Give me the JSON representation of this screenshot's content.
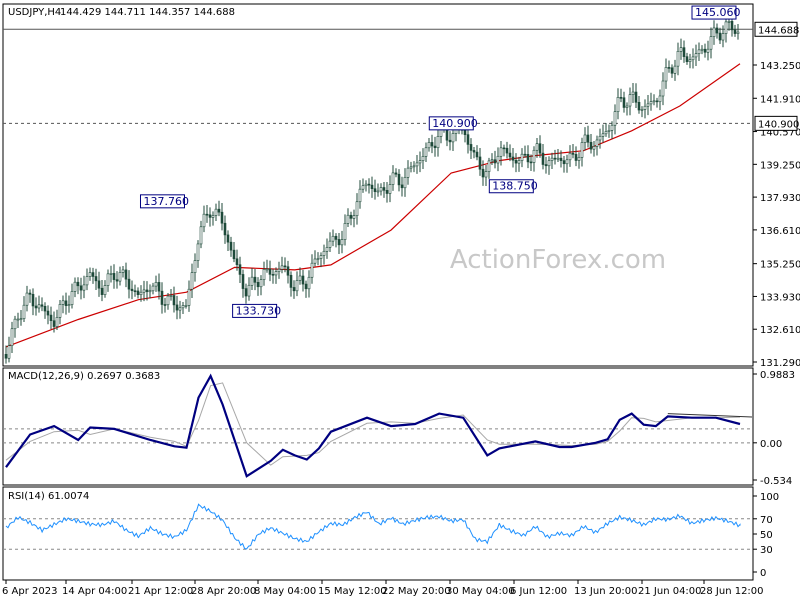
{
  "header": {
    "symbol": "USDJPY,H4",
    "ohlc": "144.429 144.711 144.357 144.688"
  },
  "watermark": "ActionForex.com",
  "colors": {
    "candle": "#1f4a3a",
    "moving_average": "#cc0000",
    "macd": "#000080",
    "signal": "#a8a8a8",
    "rsi": "#1e90ff",
    "grid": "#9a9a9a",
    "callout_border": "#000080"
  },
  "chart_data": [
    {
      "type": "candlestick",
      "title": "USDJPY,H4",
      "ylim": [
        131.29,
        145.7
      ],
      "y_ticks": [
        "131.290",
        "132.610",
        "133.930",
        "135.250",
        "136.610",
        "137.930",
        "139.250",
        "140.570",
        "141.910",
        "143.250"
      ],
      "x_ticks": [
        "6 Apr 2023",
        "14 Apr 04:00",
        "21 Apr 12:00",
        "28 Apr 20:00",
        "8 May 04:00",
        "15 May 12:00",
        "22 May 20:00",
        "30 May 04:00",
        "6 Jun 12:00",
        "13 Jun 20:00",
        "21 Jun 04:00",
        "28 Jun 12:00"
      ],
      "price_tags": [
        {
          "label": "144.688",
          "value": 144.688,
          "line": "solid"
        },
        {
          "label": "140.900",
          "value": 140.9,
          "line": "dashed"
        }
      ],
      "annotations": [
        {
          "label": "137.760",
          "x": "2023-04-27",
          "value": 137.76
        },
        {
          "label": "133.730",
          "x": "2023-05-03",
          "value": 133.73
        },
        {
          "label": "140.900",
          "x": "2023-05-31",
          "value": 140.9
        },
        {
          "label": "138.750",
          "x": "2023-06-01",
          "value": 138.75
        },
        {
          "label": "145.060",
          "x": "2023-06-30",
          "value": 145.06
        }
      ],
      "close_path": [
        [
          "2023-04-06",
          131.6
        ],
        [
          "2023-04-07",
          133.2
        ],
        [
          "2023-04-10",
          133.9
        ],
        [
          "2023-04-12",
          132.9
        ],
        [
          "2023-04-13",
          133.8
        ],
        [
          "2023-04-14",
          134.3
        ],
        [
          "2023-04-17",
          134.8
        ],
        [
          "2023-04-18",
          134.2
        ],
        [
          "2023-04-19",
          134.9
        ],
        [
          "2023-04-20",
          134.6
        ],
        [
          "2023-04-21",
          133.9
        ],
        [
          "2023-04-24",
          134.4
        ],
        [
          "2023-04-25",
          133.9
        ],
        [
          "2023-04-26",
          133.6
        ],
        [
          "2023-04-27",
          133.5
        ],
        [
          "2023-04-28",
          136.4
        ],
        [
          "2023-05-01",
          137.5
        ],
        [
          "2023-05-02",
          136.9
        ],
        [
          "2023-05-03",
          135.3
        ],
        [
          "2023-05-04",
          134.1
        ],
        [
          "2023-05-05",
          134.7
        ],
        [
          "2023-05-08",
          134.9
        ],
        [
          "2023-05-09",
          135.1
        ],
        [
          "2023-05-10",
          134.3
        ],
        [
          "2023-05-11",
          134.6
        ],
        [
          "2023-05-12",
          135.6
        ],
        [
          "2023-05-15",
          136.1
        ],
        [
          "2023-05-16",
          136.4
        ],
        [
          "2023-05-17",
          137.6
        ],
        [
          "2023-05-18",
          138.6
        ],
        [
          "2023-05-19",
          138.0
        ],
        [
          "2023-05-22",
          138.6
        ],
        [
          "2023-05-23",
          138.6
        ],
        [
          "2023-05-24",
          139.3
        ],
        [
          "2023-05-25",
          139.8
        ],
        [
          "2023-05-26",
          140.5
        ],
        [
          "2023-05-29",
          140.4
        ],
        [
          "2023-05-30",
          140.7
        ],
        [
          "2023-05-31",
          139.4
        ],
        [
          "2023-06-01",
          138.9
        ],
        [
          "2023-06-02",
          139.9
        ],
        [
          "2023-06-05",
          139.5
        ],
        [
          "2023-06-06",
          139.4
        ],
        [
          "2023-06-07",
          139.8
        ],
        [
          "2023-06-08",
          139.3
        ],
        [
          "2023-06-09",
          139.5
        ],
        [
          "2023-06-12",
          139.4
        ],
        [
          "2023-06-13",
          140.1
        ],
        [
          "2023-06-14",
          140.1
        ],
        [
          "2023-06-15",
          140.6
        ],
        [
          "2023-06-16",
          141.8
        ],
        [
          "2023-06-19",
          141.9
        ],
        [
          "2023-06-20",
          141.5
        ],
        [
          "2023-06-21",
          141.8
        ],
        [
          "2023-06-22",
          143.0
        ],
        [
          "2023-06-23",
          143.7
        ],
        [
          "2023-06-26",
          143.5
        ],
        [
          "2023-06-27",
          143.9
        ],
        [
          "2023-06-28",
          144.5
        ],
        [
          "2023-06-29",
          144.8
        ],
        [
          "2023-06-30",
          144.6
        ]
      ],
      "moving_average": [
        [
          "2023-04-06",
          131.9
        ],
        [
          "2023-04-14",
          133.0
        ],
        [
          "2023-04-21",
          133.8
        ],
        [
          "2023-04-27",
          134.1
        ],
        [
          "2023-05-03",
          135.1
        ],
        [
          "2023-05-10",
          135.0
        ],
        [
          "2023-05-15",
          135.2
        ],
        [
          "2023-05-22",
          136.6
        ],
        [
          "2023-05-29",
          138.9
        ],
        [
          "2023-06-02",
          139.4
        ],
        [
          "2023-06-07",
          139.6
        ],
        [
          "2023-06-13",
          139.8
        ],
        [
          "2023-06-19",
          140.6
        ],
        [
          "2023-06-23",
          141.6
        ],
        [
          "2023-06-30",
          143.3
        ]
      ]
    },
    {
      "type": "line",
      "title": "MACD(12,26,9) 0.2697 0.3683",
      "ylim": [
        -0.534,
        0.9883
      ],
      "y_ticks": [
        "0.9883",
        "0.00",
        "-0.534"
      ],
      "reference_lines": [
        0,
        0.2
      ],
      "series": [
        {
          "values": [
            [
              "2023-04-06",
              -0.35
            ],
            [
              "2023-04-10",
              0.12
            ],
            [
              "2023-04-12",
              0.24
            ],
            [
              "2023-04-14",
              0.04
            ],
            [
              "2023-04-17",
              0.22
            ],
            [
              "2023-04-19",
              0.2
            ],
            [
              "2023-04-24",
              0.04
            ],
            [
              "2023-04-26",
              -0.05
            ],
            [
              "2023-04-27",
              -0.07
            ],
            [
              "2023-04-28",
              0.65
            ],
            [
              "2023-05-01",
              0.96
            ],
            [
              "2023-05-02",
              0.55
            ],
            [
              "2023-05-04",
              -0.48
            ],
            [
              "2023-05-08",
              -0.26
            ],
            [
              "2023-05-09",
              -0.1
            ],
            [
              "2023-05-10",
              -0.18
            ],
            [
              "2023-05-11",
              -0.24
            ],
            [
              "2023-05-12",
              -0.08
            ],
            [
              "2023-05-15",
              0.16
            ],
            [
              "2023-05-18",
              0.36
            ],
            [
              "2023-05-22",
              0.24
            ],
            [
              "2023-05-24",
              0.27
            ],
            [
              "2023-05-26",
              0.42
            ],
            [
              "2023-05-30",
              0.36
            ],
            [
              "2023-06-01",
              -0.18
            ],
            [
              "2023-06-02",
              -0.08
            ],
            [
              "2023-06-07",
              0.02
            ],
            [
              "2023-06-09",
              -0.06
            ],
            [
              "2023-06-12",
              -0.06
            ],
            [
              "2023-06-14",
              0.0
            ],
            [
              "2023-06-15",
              0.05
            ],
            [
              "2023-06-16",
              0.33
            ],
            [
              "2023-06-19",
              0.42
            ],
            [
              "2023-06-20",
              0.26
            ],
            [
              "2023-06-21",
              0.24
            ],
            [
              "2023-06-22",
              0.38
            ],
            [
              "2023-06-26",
              0.36
            ],
            [
              "2023-06-28",
              0.36
            ],
            [
              "2023-06-30",
              0.27
            ]
          ]
        },
        {
          "values": [
            [
              "2023-04-06",
              -0.25
            ],
            [
              "2023-04-10",
              0.02
            ],
            [
              "2023-04-12",
              0.16
            ],
            [
              "2023-04-14",
              0.18
            ],
            [
              "2023-04-17",
              0.12
            ],
            [
              "2023-04-19",
              0.2
            ],
            [
              "2023-04-24",
              0.08
            ],
            [
              "2023-04-26",
              0.02
            ],
            [
              "2023-04-27",
              -0.05
            ],
            [
              "2023-04-28",
              0.32
            ],
            [
              "2023-05-01",
              0.82
            ],
            [
              "2023-05-02",
              0.86
            ],
            [
              "2023-05-04",
              0.0
            ],
            [
              "2023-05-08",
              -0.32
            ],
            [
              "2023-05-09",
              -0.2
            ],
            [
              "2023-05-11",
              -0.18
            ],
            [
              "2023-05-12",
              -0.14
            ],
            [
              "2023-05-15",
              0.02
            ],
            [
              "2023-05-18",
              0.28
            ],
            [
              "2023-05-22",
              0.3
            ],
            [
              "2023-05-24",
              0.28
            ],
            [
              "2023-05-26",
              0.35
            ],
            [
              "2023-05-30",
              0.4
            ],
            [
              "2023-06-01",
              0.04
            ],
            [
              "2023-06-02",
              -0.02
            ],
            [
              "2023-06-07",
              -0.02
            ],
            [
              "2023-06-09",
              -0.03
            ],
            [
              "2023-06-12",
              -0.04
            ],
            [
              "2023-06-14",
              -0.02
            ],
            [
              "2023-06-15",
              0.02
            ],
            [
              "2023-06-16",
              0.17
            ],
            [
              "2023-06-19",
              0.36
            ],
            [
              "2023-06-20",
              0.35
            ],
            [
              "2023-06-21",
              0.3
            ],
            [
              "2023-06-22",
              0.32
            ],
            [
              "2023-06-26",
              0.36
            ],
            [
              "2023-06-28",
              0.36
            ],
            [
              "2023-06-30",
              0.37
            ]
          ]
        }
      ],
      "trend_line": [
        [
          "2023-06-22",
          0.42
        ],
        [
          "2023-06-30",
          0.37
        ]
      ]
    },
    {
      "type": "line",
      "title": "RSI(14) 61.0074",
      "ylim": [
        0,
        100
      ],
      "y_ticks": [
        "100",
        "70",
        "50",
        "30",
        "0"
      ],
      "reference_lines": [
        70,
        30
      ],
      "series": [
        {
          "values": [
            [
              "2023-04-06",
              58
            ],
            [
              "2023-04-07",
              72
            ],
            [
              "2023-04-10",
              65
            ],
            [
              "2023-04-11",
              55
            ],
            [
              "2023-04-13",
              70
            ],
            [
              "2023-04-14",
              67
            ],
            [
              "2023-04-17",
              63
            ],
            [
              "2023-04-18",
              62
            ],
            [
              "2023-04-19",
              67
            ],
            [
              "2023-04-20",
              55
            ],
            [
              "2023-04-21",
              47
            ],
            [
              "2023-04-24",
              58
            ],
            [
              "2023-04-25",
              50
            ],
            [
              "2023-04-26",
              46
            ],
            [
              "2023-04-27",
              55
            ],
            [
              "2023-04-28",
              88
            ],
            [
              "2023-05-01",
              80
            ],
            [
              "2023-05-02",
              68
            ],
            [
              "2023-05-03",
              45
            ],
            [
              "2023-05-04",
              30
            ],
            [
              "2023-05-05",
              50
            ],
            [
              "2023-05-08",
              58
            ],
            [
              "2023-05-09",
              51
            ],
            [
              "2023-05-10",
              44
            ],
            [
              "2023-05-11",
              40
            ],
            [
              "2023-05-12",
              53
            ],
            [
              "2023-05-15",
              64
            ],
            [
              "2023-05-16",
              62
            ],
            [
              "2023-05-17",
              72
            ],
            [
              "2023-05-18",
              79
            ],
            [
              "2023-05-19",
              63
            ],
            [
              "2023-05-22",
              71
            ],
            [
              "2023-05-23",
              63
            ],
            [
              "2023-05-24",
              68
            ],
            [
              "2023-05-25",
              72
            ],
            [
              "2023-05-26",
              73
            ],
            [
              "2023-05-29",
              67
            ],
            [
              "2023-05-30",
              69
            ],
            [
              "2023-05-31",
              43
            ],
            [
              "2023-06-01",
              40
            ],
            [
              "2023-06-02",
              62
            ],
            [
              "2023-06-05",
              54
            ],
            [
              "2023-06-06",
              48
            ],
            [
              "2023-06-07",
              60
            ],
            [
              "2023-06-08",
              46
            ],
            [
              "2023-06-09",
              51
            ],
            [
              "2023-06-12",
              48
            ],
            [
              "2023-06-13",
              60
            ],
            [
              "2023-06-14",
              52
            ],
            [
              "2023-06-15",
              64
            ],
            [
              "2023-06-16",
              72
            ],
            [
              "2023-06-19",
              68
            ],
            [
              "2023-06-20",
              62
            ],
            [
              "2023-06-21",
              70
            ],
            [
              "2023-06-22",
              69
            ],
            [
              "2023-06-23",
              74
            ],
            [
              "2023-06-26",
              64
            ],
            [
              "2023-06-27",
              68
            ],
            [
              "2023-06-28",
              71
            ],
            [
              "2023-06-29",
              67
            ],
            [
              "2023-06-30",
              61
            ]
          ]
        }
      ]
    }
  ]
}
